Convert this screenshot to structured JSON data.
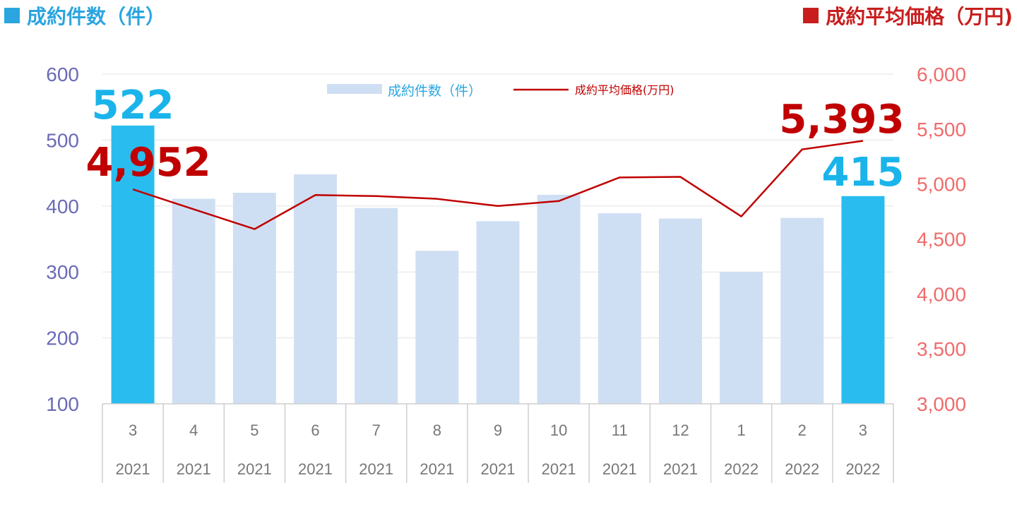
{
  "header": {
    "left_title": "成約件数（件）",
    "right_title": "成約平均価格（万円)"
  },
  "colors": {
    "highlight_bar": "#29bdef",
    "normal_bar": "#cfdff3",
    "line": "#c00000",
    "left_axis": "#6a6ab8",
    "right_axis": "#f06b6b"
  },
  "chart_data": {
    "type": "bar",
    "categories": [
      {
        "month": "3",
        "year": "2021"
      },
      {
        "month": "4",
        "year": "2021"
      },
      {
        "month": "5",
        "year": "2021"
      },
      {
        "month": "6",
        "year": "2021"
      },
      {
        "month": "7",
        "year": "2021"
      },
      {
        "month": "8",
        "year": "2021"
      },
      {
        "month": "9",
        "year": "2021"
      },
      {
        "month": "10",
        "year": "2021"
      },
      {
        "month": "11",
        "year": "2021"
      },
      {
        "month": "12",
        "year": "2021"
      },
      {
        "month": "1",
        "year": "2022"
      },
      {
        "month": "2",
        "year": "2022"
      },
      {
        "month": "3",
        "year": "2022"
      }
    ],
    "series": [
      {
        "name": "成約件数（件）",
        "type": "bar",
        "axis": "left",
        "values": [
          522,
          411,
          420,
          448,
          397,
          332,
          377,
          417,
          389,
          381,
          300,
          382,
          415
        ],
        "highlight": [
          true,
          false,
          false,
          false,
          false,
          false,
          false,
          false,
          false,
          false,
          false,
          false,
          true
        ]
      },
      {
        "name": "成約平均価格(万円)",
        "type": "line",
        "axis": "right",
        "values": [
          4952,
          4770,
          4590,
          4900,
          4890,
          4865,
          4800,
          4845,
          5060,
          5065,
          4705,
          5315,
          5393
        ]
      }
    ],
    "left_axis": {
      "ylim": [
        100,
        600
      ],
      "ticks": [
        "100",
        "200",
        "300",
        "400",
        "500",
        "600"
      ]
    },
    "right_axis": {
      "ylim": [
        3000,
        6000
      ],
      "ticks": [
        "3,000",
        "3,500",
        "4,000",
        "4,500",
        "5,000",
        "5,500",
        "6,000"
      ]
    },
    "data_labels": [
      {
        "series": 0,
        "index": 0,
        "text": "522"
      },
      {
        "series": 0,
        "index": 12,
        "text": "415"
      },
      {
        "series": 1,
        "index": 0,
        "text": "4,952"
      },
      {
        "series": 1,
        "index": 12,
        "text": "5,393"
      }
    ],
    "grid": true,
    "legend_position": "top-center"
  }
}
